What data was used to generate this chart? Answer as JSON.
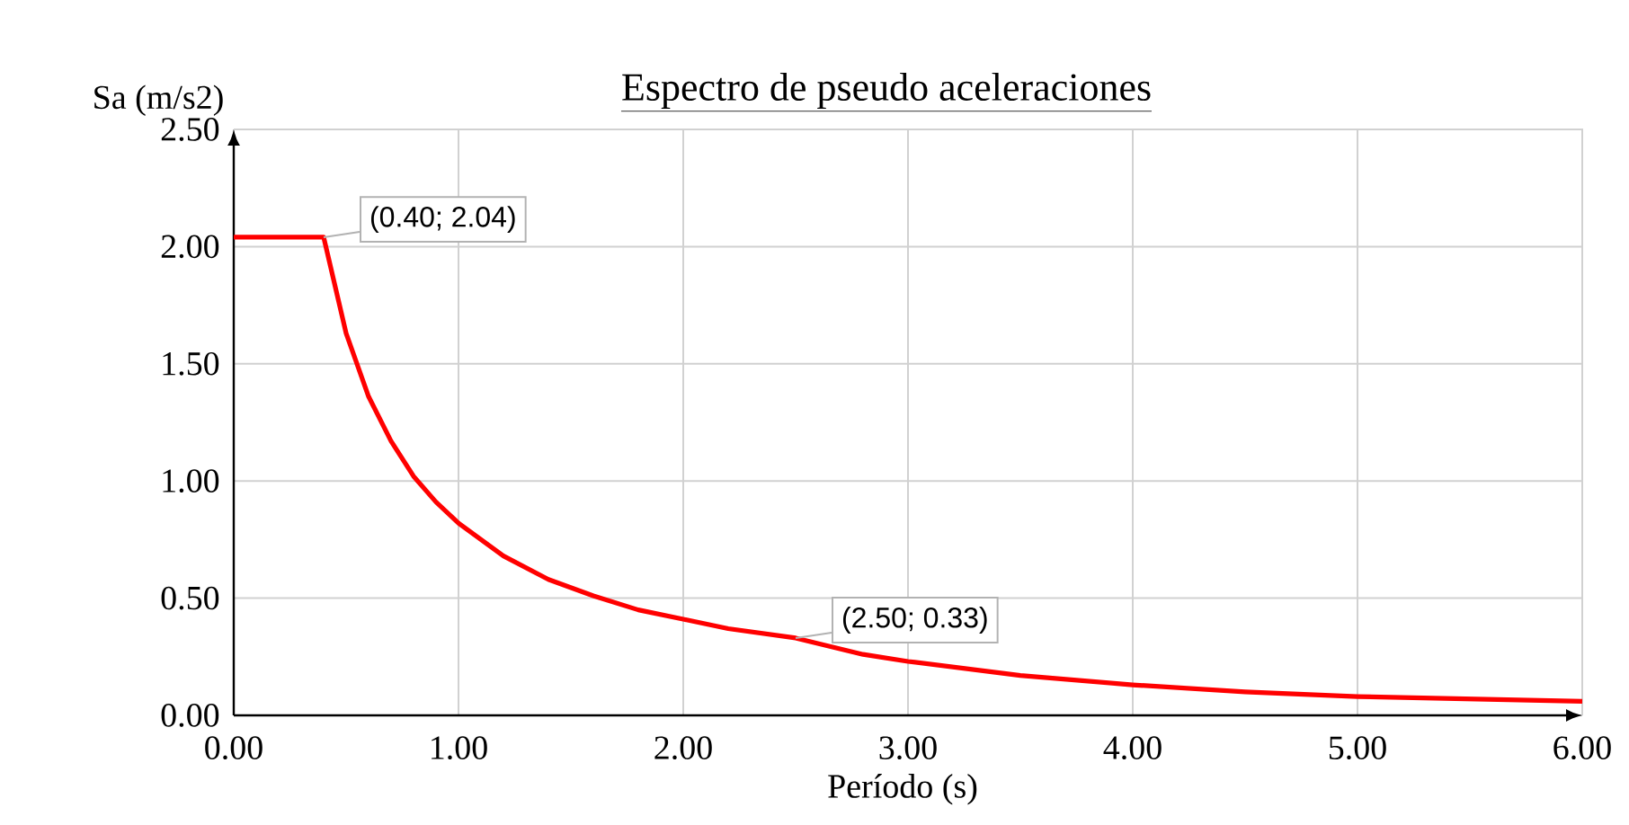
{
  "chart_data": {
    "type": "line",
    "title": "Espectro de pseudo aceleraciones",
    "xlabel": "Período (s)",
    "ylabel": "Sa (m/s2)",
    "x": [
      0,
      0.4,
      0.5,
      0.6,
      0.7,
      0.8,
      0.9,
      1.0,
      1.2,
      1.4,
      1.6,
      1.8,
      2.0,
      2.2,
      2.5,
      2.8,
      3.0,
      3.5,
      4.0,
      4.5,
      5.0,
      5.5,
      6.0
    ],
    "series": [
      {
        "color": "#ff0000",
        "values": [
          2.04,
          2.04,
          1.63,
          1.36,
          1.17,
          1.02,
          0.91,
          0.82,
          0.68,
          0.58,
          0.51,
          0.45,
          0.41,
          0.37,
          0.33,
          0.26,
          0.23,
          0.17,
          0.13,
          0.1,
          0.08,
          0.07,
          0.06
        ]
      }
    ],
    "xlim": [
      0,
      6
    ],
    "ylim": [
      0,
      2.5
    ],
    "xticks": [
      {
        "value": 0,
        "label": "0.00"
      },
      {
        "value": 1,
        "label": "1.00"
      },
      {
        "value": 2,
        "label": "2.00"
      },
      {
        "value": 3,
        "label": "3.00"
      },
      {
        "value": 4,
        "label": "4.00"
      },
      {
        "value": 5,
        "label": "5.00"
      },
      {
        "value": 6,
        "label": "6.00"
      }
    ],
    "yticks": [
      {
        "value": 0,
        "label": "0.00"
      },
      {
        "value": 0.5,
        "label": "0.50"
      },
      {
        "value": 1,
        "label": "1.00"
      },
      {
        "value": 1.5,
        "label": "1.50"
      },
      {
        "value": 2,
        "label": "2.00"
      },
      {
        "value": 2.5,
        "label": "2.50"
      }
    ],
    "annotations": [
      {
        "text": "(0.40; 2.04)",
        "x": 0.4,
        "y": 2.04
      },
      {
        "text": "(2.50; 0.33)",
        "x": 2.5,
        "y": 0.33
      }
    ],
    "grid": true,
    "marker": "none",
    "line_style": "solid"
  }
}
